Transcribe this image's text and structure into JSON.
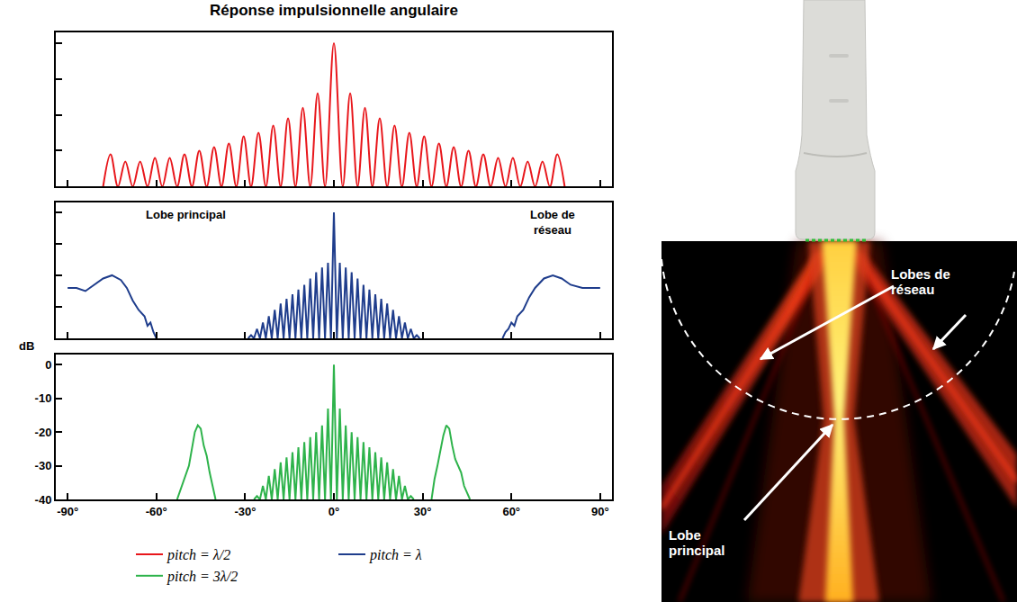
{
  "chart_data": [
    {
      "type": "line",
      "title": "Réponse impulsionnelle angulaire",
      "xlim": [
        -94,
        94
      ],
      "xticks": [
        -90,
        -60,
        -30,
        0,
        30,
        60,
        90
      ],
      "ylim": [
        -40,
        3
      ],
      "yticks": [
        -40,
        -30,
        -20,
        -10,
        0
      ],
      "tick_labels": false,
      "series": [
        {
          "name": "pitch = λ/2",
          "color": "#e8161b",
          "line_style": "smooth",
          "x": [
            -78,
            -75.5,
            -73,
            -70.5,
            -68,
            -65.5,
            -63,
            -60.5,
            -58,
            -55.5,
            -53,
            -50.5,
            -48,
            -45.5,
            -43,
            -40.5,
            -38,
            -35.5,
            -33,
            -30.5,
            -28,
            -25.5,
            -23,
            -20.5,
            -18,
            -15.5,
            -13,
            -10.5,
            -8,
            -5.5,
            -3,
            0,
            3,
            5.5,
            8,
            10.5,
            13,
            15.5,
            18,
            20.5,
            23,
            25.5,
            28,
            30.5,
            33,
            35.5,
            38,
            40.5,
            43,
            45.5,
            48,
            50.5,
            53,
            55.5,
            58,
            60.5,
            63,
            65.5,
            68,
            70.5,
            73,
            75.5,
            78
          ],
          "values": [
            -40,
            -31,
            -40,
            -33,
            -40,
            -33,
            -40,
            -32,
            -40,
            -32,
            -40,
            -31,
            -40,
            -30,
            -40,
            -29,
            -40,
            -28,
            -40,
            -26,
            -40,
            -25,
            -40,
            -23,
            -40,
            -21,
            -40,
            -18,
            -40,
            -14,
            -40,
            0,
            -40,
            -14,
            -40,
            -18,
            -40,
            -21,
            -40,
            -23,
            -40,
            -25,
            -40,
            -26,
            -40,
            -28,
            -40,
            -29,
            -40,
            -30,
            -40,
            -31,
            -40,
            -32,
            -40,
            -32,
            -40,
            -33,
            -40,
            -33,
            -40,
            -31,
            -40
          ]
        }
      ]
    },
    {
      "type": "line",
      "xlim": [
        -94,
        94
      ],
      "xticks": [
        -90,
        -60,
        -30,
        0,
        30,
        60,
        90
      ],
      "ylim": [
        -40,
        3
      ],
      "yticks": [
        -40,
        -30,
        -20,
        -10,
        0
      ],
      "tick_labels": false,
      "annotations": [
        "Lobe principal",
        "Lobe de réseau"
      ],
      "series": [
        {
          "name": "pitch = λ",
          "color": "#1f3d8c",
          "line_style": "solid",
          "x": [
            -90,
            -87,
            -84,
            -81,
            -78,
            -75,
            -72,
            -70,
            -68,
            -66,
            -64,
            -63,
            -62,
            -61,
            -60,
            -45,
            -29,
            -28,
            -27,
            -26,
            -25,
            -24,
            -23,
            -22,
            -21,
            -20,
            -19,
            -18,
            -17,
            -16,
            -15,
            -14,
            -13,
            -12,
            -11,
            -10,
            -9,
            -8,
            -7,
            -6,
            -5,
            -4,
            -3,
            -2,
            -1,
            0,
            1,
            2,
            3,
            4,
            5,
            6,
            7,
            8,
            9,
            10,
            11,
            12,
            13,
            14,
            15,
            16,
            17,
            18,
            19,
            20,
            21,
            22,
            23,
            24,
            25,
            26,
            27,
            28,
            29,
            45,
            57,
            58,
            59,
            60,
            61,
            62,
            64,
            66,
            68,
            71,
            74,
            77,
            80,
            84,
            87,
            90
          ],
          "values": [
            -24,
            -24,
            -25,
            -23,
            -21,
            -20,
            -21.5,
            -24,
            -28,
            -31,
            -33,
            -36,
            -35,
            -38,
            -40,
            null,
            -40,
            -39,
            -40,
            -37,
            -40,
            -35,
            -40,
            -33,
            -40,
            -31,
            -40,
            -29,
            -40,
            -27.5,
            -40,
            -26,
            -40,
            -24.5,
            -40,
            -23,
            -40,
            -21,
            -40,
            -19,
            -40,
            -17.5,
            -40,
            -16,
            -40,
            0,
            -40,
            -16,
            -40,
            -17.5,
            -40,
            -19,
            -40,
            -21,
            -40,
            -23,
            -40,
            -24.5,
            -40,
            -26,
            -40,
            -27.5,
            -40,
            -29,
            -40,
            -31,
            -40,
            -33,
            -40,
            -35,
            -40,
            -37,
            -40,
            -39,
            -40,
            null,
            -40,
            -38,
            -37,
            -35,
            -36,
            -33,
            -31,
            -27,
            -24,
            -21,
            -20,
            -21,
            -23,
            -24,
            -24,
            -24
          ]
        }
      ]
    },
    {
      "type": "line",
      "y_label": "dB",
      "legend": "bottom",
      "xlim": [
        -94,
        94
      ],
      "xticks": [
        {
          "value": -90,
          "label": "-90°"
        },
        {
          "value": -60,
          "label": "-60°"
        },
        {
          "value": -30,
          "label": "-30°"
        },
        {
          "value": 0,
          "label": "0°"
        },
        {
          "value": 30,
          "label": "30°"
        },
        {
          "value": 60,
          "label": "60°"
        },
        {
          "value": 90,
          "label": "90°"
        }
      ],
      "ylim": [
        -40,
        3
      ],
      "yticks": [
        -40,
        -30,
        -20,
        -10,
        0
      ],
      "series": [
        {
          "name": "pitch = 3λ/2",
          "color": "#2eb34b",
          "line_style": "solid",
          "x": [
            -53,
            -51,
            -49,
            -48,
            -47,
            -46,
            -45,
            -44,
            -43,
            -42,
            -41,
            -40,
            -35,
            -27,
            -26,
            -25,
            -24,
            -23,
            -22,
            -21,
            -20,
            -19,
            -18,
            -17,
            -16,
            -15,
            -14,
            -13,
            -12,
            -11,
            -10,
            -9,
            -8,
            -7,
            -6,
            -5,
            -4,
            -3,
            -2,
            -1,
            0,
            1,
            2,
            3,
            4,
            5,
            6,
            7,
            8,
            9,
            10,
            11,
            12,
            13,
            14,
            15,
            16,
            17,
            18,
            19,
            20,
            21,
            22,
            23,
            24,
            25,
            26,
            27,
            30,
            33,
            34,
            35,
            36,
            37,
            38,
            39,
            40,
            41,
            43,
            44,
            46
          ],
          "values": [
            -40,
            -35,
            -30,
            -25,
            -20,
            -18,
            -19,
            -24,
            -27,
            -32,
            -36,
            -40,
            null,
            -40,
            -39,
            -40,
            -36,
            -40,
            -33,
            -40,
            -31,
            -40,
            -29,
            -40,
            -27.5,
            -40,
            -26,
            -40,
            -24.5,
            -40,
            -23,
            -40,
            -21.5,
            -40,
            -20,
            -40,
            -18,
            -40,
            -13,
            -40,
            0,
            -40,
            -13,
            -40,
            -18,
            -40,
            -20,
            -40,
            -21.5,
            -40,
            -23,
            -40,
            -24.5,
            -40,
            -26,
            -40,
            -27.5,
            -40,
            -29,
            -40,
            -31,
            -40,
            -33,
            -40,
            -36,
            -40,
            -39,
            -40,
            null,
            -40,
            -34,
            -30,
            -25,
            -21,
            -18,
            -19,
            -24,
            -28,
            -32,
            -36,
            -40
          ]
        }
      ]
    }
  ],
  "beam_image": {
    "grating_lobes_label": "Lobes de réseau",
    "main_lobe_label": "Lobe principal"
  }
}
